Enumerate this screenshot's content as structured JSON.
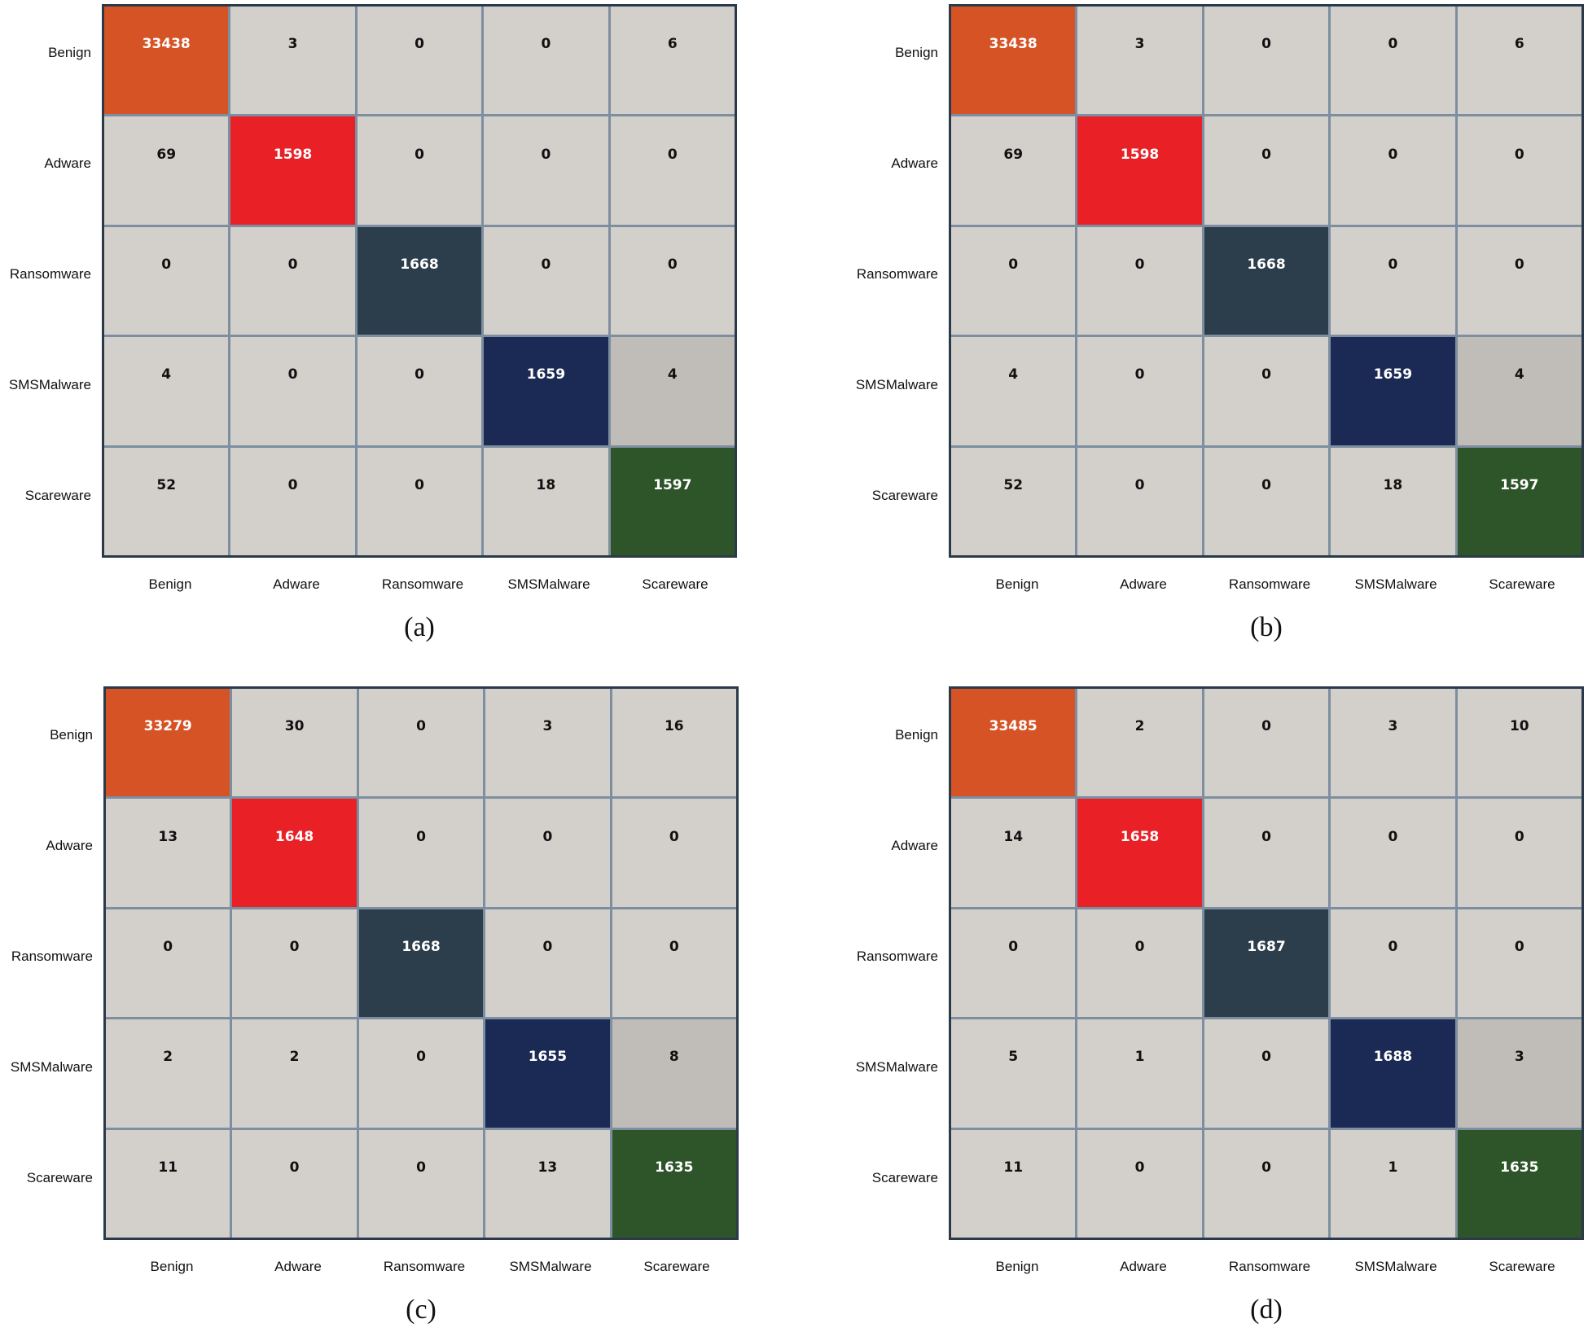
{
  "palette": {
    "default": "#d3cfcb",
    "benign": "#d65326",
    "adware": "#ea2027",
    "ransomware": "#2c3e4b",
    "smsmalware": "#1b2a55",
    "scareware": "#2e5429",
    "offdiag_highlight": "#c0bdb8"
  },
  "chart_data": [
    {
      "type": "heatmap",
      "caption": "(a)",
      "rows": [
        "Benign",
        "Adware",
        "Ransomware",
        "SMSMalware",
        "Scareware"
      ],
      "cols": [
        "Benign",
        "Adware",
        "Ransomware",
        "SMSMalware",
        "Scareware"
      ],
      "values": [
        [
          33438,
          3,
          0,
          0,
          6
        ],
        [
          69,
          1598,
          0,
          0,
          0
        ],
        [
          0,
          0,
          1668,
          0,
          0
        ],
        [
          4,
          0,
          0,
          1659,
          4
        ],
        [
          52,
          0,
          0,
          18,
          1597
        ]
      ]
    },
    {
      "type": "heatmap",
      "caption": "(b)",
      "rows": [
        "Benign",
        "Adware",
        "Ransomware",
        "SMSMalware",
        "Scareware"
      ],
      "cols": [
        "Benign",
        "Adware",
        "Ransomware",
        "SMSMalware",
        "Scareware"
      ],
      "values": [
        [
          33438,
          3,
          0,
          0,
          6
        ],
        [
          69,
          1598,
          0,
          0,
          0
        ],
        [
          0,
          0,
          1668,
          0,
          0
        ],
        [
          4,
          0,
          0,
          1659,
          4
        ],
        [
          52,
          0,
          0,
          18,
          1597
        ]
      ]
    },
    {
      "type": "heatmap",
      "caption": "(c)",
      "rows": [
        "Benign",
        "Adware",
        "Ransomware",
        "SMSMalware",
        "Scareware"
      ],
      "cols": [
        "Benign",
        "Adware",
        "Ransomware",
        "SMSMalware",
        "Scareware"
      ],
      "values": [
        [
          33279,
          30,
          0,
          3,
          16
        ],
        [
          13,
          1648,
          0,
          0,
          0
        ],
        [
          0,
          0,
          1668,
          0,
          0
        ],
        [
          2,
          2,
          0,
          1655,
          8
        ],
        [
          11,
          0,
          0,
          13,
          1635
        ]
      ]
    },
    {
      "type": "heatmap",
      "caption": "(d)",
      "rows": [
        "Benign",
        "Adware",
        "Ransomware",
        "SMSMalware",
        "Scareware"
      ],
      "cols": [
        "Benign",
        "Adware",
        "Ransomware",
        "SMSMalware",
        "Scareware"
      ],
      "values": [
        [
          33485,
          2,
          0,
          3,
          10
        ],
        [
          14,
          1658,
          0,
          0,
          0
        ],
        [
          0,
          0,
          1687,
          0,
          0
        ],
        [
          5,
          1,
          0,
          1688,
          3
        ],
        [
          11,
          0,
          0,
          1,
          1635
        ]
      ]
    }
  ]
}
